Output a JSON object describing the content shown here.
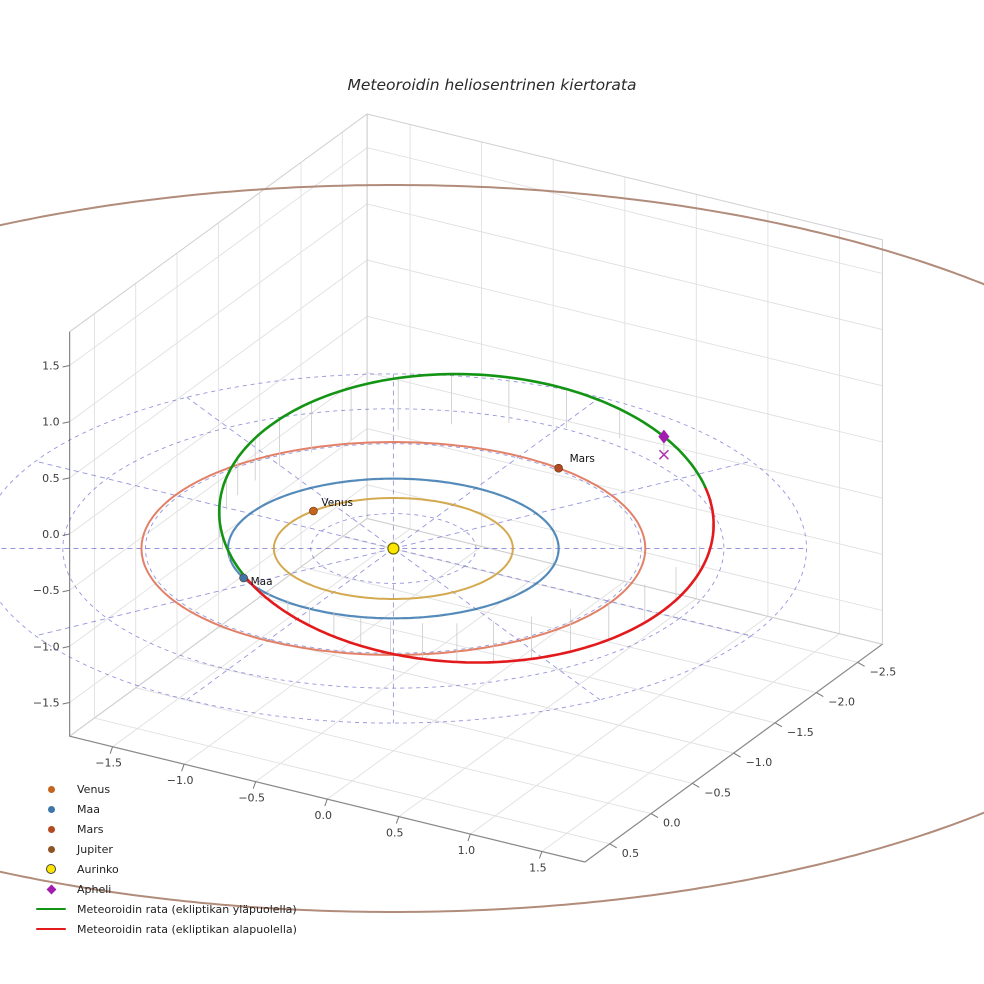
{
  "title": "Meteoroidin heliosentrinen kiertorata",
  "legend": {
    "items": [
      {
        "label": "Venus",
        "marker": "dot",
        "color": "#c5641e"
      },
      {
        "label": "Maa",
        "marker": "dot",
        "color": "#3f76aa"
      },
      {
        "label": "Mars",
        "marker": "dot",
        "color": "#b34a22"
      },
      {
        "label": "Jupiter",
        "marker": "dot",
        "color": "#8d5524"
      },
      {
        "label": "Aurinko",
        "marker": "dot-outline",
        "color": "#ffe600"
      },
      {
        "label": "Apheli",
        "marker": "diamond",
        "color": "#a21caf"
      },
      {
        "label": "Meteoroidin rata (ekliptikan yläpuolella)",
        "marker": "line",
        "color": "#149414"
      },
      {
        "label": "Meteoroidin rata (ekliptikan alapuolella)",
        "marker": "line",
        "color": "#e31a1c"
      }
    ]
  },
  "chart_data": {
    "type": "3d-orbit",
    "title": "Meteoroidin heliosentrinen kiertorata",
    "view": {
      "elev_deg": 25,
      "azim_deg": -60,
      "y_axis_inverted": true,
      "grid": true,
      "legend_position": "lower left"
    },
    "axes": {
      "x_ticks": [
        -1.5,
        -1.0,
        -0.5,
        0.0,
        0.5,
        1.0,
        1.5
      ],
      "y_ticks": [
        0.5,
        0.0,
        -0.5,
        -1.0,
        -1.5,
        -2.0,
        -2.5
      ],
      "z_ticks": [
        1.5,
        1.0,
        0.5,
        0.0,
        -0.5,
        -1.0,
        -1.5
      ],
      "x_range": [
        -1.8,
        1.8
      ],
      "y_range": [
        -2.8,
        0.8
      ],
      "z_range": [
        -1.8,
        1.8
      ]
    },
    "ecliptic_grid": {
      "circle_radii_au": [
        0.5,
        1.0,
        1.5,
        2.0,
        2.5
      ],
      "radial_step_deg": 30,
      "radial_length_au": 2.5,
      "style": "dashed",
      "color": "#4040c0"
    },
    "sun": {
      "label": "Aurinko",
      "position_au": [
        0,
        0,
        0
      ],
      "color": "#ffe600",
      "edge_color": "#6b6b00"
    },
    "planet_orbits": [
      {
        "name": "Venus",
        "radius_au": 0.723,
        "orbit_color": "#cfa13d",
        "marker_color": "#c5641e",
        "marker_longitude_deg": 198,
        "labeled": true,
        "label_offset": [
          8,
          -5
        ]
      },
      {
        "name": "Maa",
        "radius_au": 1.0,
        "orbit_color": "#4682b4",
        "marker_color": "#3f76aa",
        "marker_longitude_deg": 125,
        "labeled": true,
        "label_offset": [
          7,
          7
        ]
      },
      {
        "name": "Mars",
        "radius_au": 1.524,
        "orbit_color": "#df7358",
        "marker_color": "#b34a22",
        "marker_longitude_deg": 281,
        "labeled": true,
        "label_offset": [
          11,
          -6
        ]
      },
      {
        "name": "Jupiter",
        "radius_au": 5.204,
        "orbit_color": "#a97f6d",
        "marker_color": "#8d5524",
        "marker_longitude_deg": null,
        "labeled": false,
        "label_offset": [
          0,
          0
        ]
      }
    ],
    "meteoroid_orbit": {
      "a_au": 1.55,
      "e": 0.37,
      "i_deg": 17,
      "ascending_node_deg": 125,
      "arg_perihelion_deg": 345,
      "perihelion_au": 0.98,
      "aphelion_au": 2.12,
      "above_ecliptic_color": "#149414",
      "below_ecliptic_color": "#e31a1c",
      "drop_lines": {
        "color": "#c9c9c9",
        "step_deg": 10
      },
      "aphelion_marker": {
        "label": "Apheli",
        "shape": "diamond",
        "color": "#a21caf"
      },
      "aphelion_projection_marker": {
        "shape": "x",
        "color": "#b03ab0"
      }
    }
  }
}
